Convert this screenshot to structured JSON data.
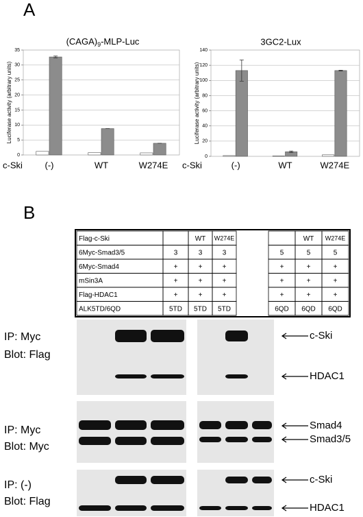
{
  "panel_a": {
    "label": "A"
  },
  "chart_data": [
    {
      "type": "bar",
      "title_parts": [
        "(CAGA)",
        "9",
        "-MLP-Luc"
      ],
      "ylabel": "Luciferase activity (arbitrary units)",
      "xlabel": "c-Ski",
      "categories": [
        "(-)",
        "WT",
        "W274E"
      ],
      "ylim": [
        0,
        35
      ],
      "yticks": [
        0,
        5,
        10,
        15,
        20,
        25,
        30,
        35
      ],
      "grid": true,
      "series": [
        {
          "color": "#ffffff",
          "values": [
            1.2,
            0.8,
            0.7
          ]
        },
        {
          "color": "#8c8c8c",
          "values": [
            32.7,
            8.8,
            3.9
          ],
          "errors": [
            0.3,
            0,
            0
          ]
        }
      ]
    },
    {
      "type": "bar",
      "title": "3GC2-Lux",
      "ylabel": "Luciferase activity (arbitrary units)",
      "xlabel": "c-Ski",
      "categories": [
        "(-)",
        "WT",
        "W274E"
      ],
      "ylim": [
        0,
        140
      ],
      "yticks": [
        0,
        20,
        40,
        60,
        80,
        100,
        120,
        140
      ],
      "grid": true,
      "series": [
        {
          "color": "#ffffff",
          "values": [
            1,
            0.5,
            2
          ]
        },
        {
          "color": "#8c8c8c",
          "values": [
            113,
            6,
            113
          ],
          "errors": [
            14,
            1,
            0.5
          ]
        }
      ]
    }
  ],
  "panel_b": {
    "label": "B",
    "table": {
      "rows": [
        [
          "Flag-c-Ski",
          null,
          "WT",
          "W274E",
          null,
          "WT",
          "W274E"
        ],
        [
          "6Myc-Smad3/5",
          "3",
          "3",
          "3",
          "5",
          "5",
          "5"
        ],
        [
          "6Myc-Smad4",
          "+",
          "+",
          "+",
          "+",
          "+",
          "+"
        ],
        [
          "mSin3A",
          "+",
          "+",
          "+",
          "+",
          "+",
          "+"
        ],
        [
          "Flag-HDAC1",
          "+",
          "+",
          "+",
          "+",
          "+",
          "+"
        ],
        [
          "ALK5TD/6QD",
          "5TD",
          "5TD",
          "5TD",
          "6QD",
          "6QD",
          "6QD"
        ]
      ]
    },
    "blots": [
      {
        "labels": [
          "IP: Myc",
          "Blot: Flag"
        ],
        "markers": [
          "c-Ski",
          "HDAC1"
        ]
      },
      {
        "labels": [
          "IP: Myc",
          "Blot: Myc"
        ],
        "markers": [
          "Smad4",
          "Smad3/5"
        ]
      },
      {
        "labels": [
          "IP: (-)",
          "Blot: Flag"
        ],
        "markers": [
          "c-Ski",
          "HDAC1"
        ]
      }
    ]
  }
}
